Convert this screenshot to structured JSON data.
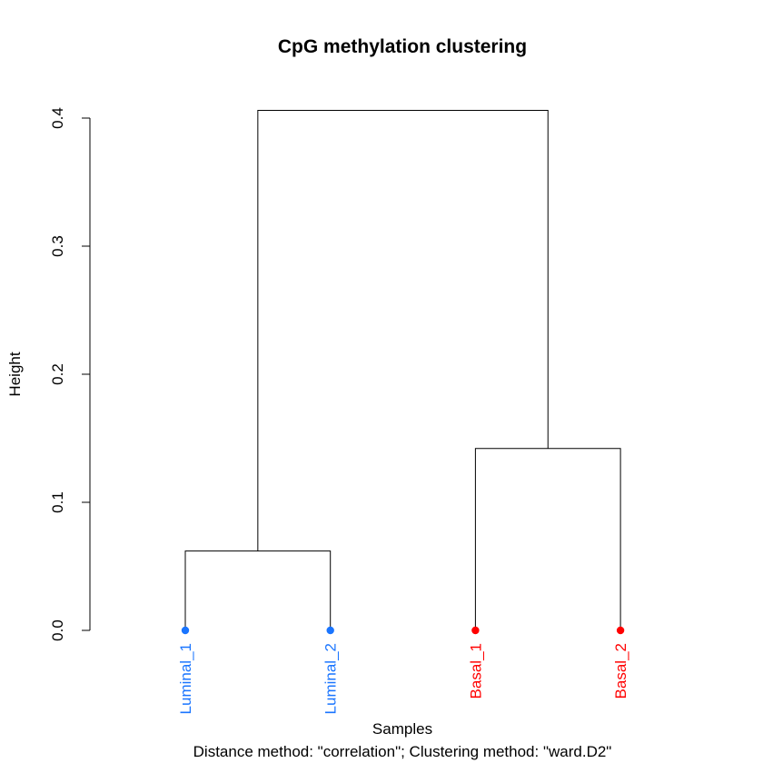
{
  "chart_data": {
    "type": "dendrogram",
    "title": "CpG methylation clustering",
    "xlabel": "Samples",
    "ylabel": "Height",
    "subtitle": "Distance method: \"correlation\"; Clustering method: \"ward.D2\"",
    "ylim": [
      0,
      0.4
    ],
    "yticks": [
      {
        "value": 0.0,
        "label": "0.0"
      },
      {
        "value": 0.1,
        "label": "0.1"
      },
      {
        "value": 0.2,
        "label": "0.2"
      },
      {
        "value": 0.3,
        "label": "0.3"
      },
      {
        "value": 0.4,
        "label": "0.4"
      }
    ],
    "leaves": [
      {
        "name": "Luminal_1",
        "color": "#1a75ff"
      },
      {
        "name": "Luminal_2",
        "color": "#1a75ff"
      },
      {
        "name": "Basal_1",
        "color": "#ff0000"
      },
      {
        "name": "Basal_2",
        "color": "#ff0000"
      }
    ],
    "merges": [
      {
        "left": "Luminal_1",
        "right": "Luminal_2",
        "height": 0.062
      },
      {
        "left": "Basal_1",
        "right": "Basal_2",
        "height": 0.142
      },
      {
        "left": "cluster_1",
        "right": "cluster_2",
        "height": 0.406
      }
    ]
  }
}
